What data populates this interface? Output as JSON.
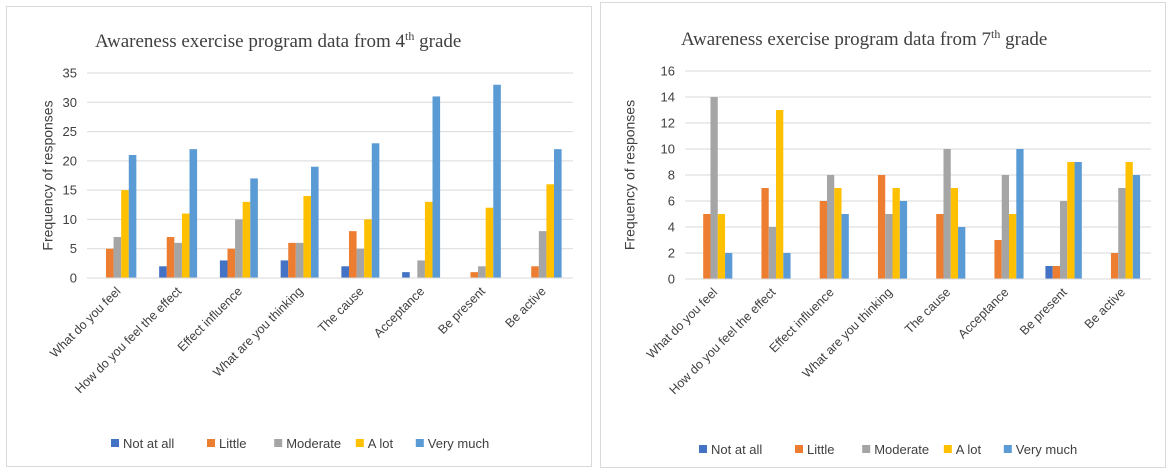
{
  "chart_data": [
    {
      "type": "bar",
      "title": "Awareness exercise program data from 4",
      "title_sup": "th",
      "title_end": " grade",
      "ylabel": "Frequency of responses",
      "xlabel": "",
      "ylim": [
        0,
        35
      ],
      "yticks": [
        0,
        5,
        10,
        15,
        20,
        25,
        30,
        35
      ],
      "grid": true,
      "legend_position": "bottom",
      "categories": [
        "What do you feel",
        "How do you feel the effect",
        "Effect influence",
        "What are you thinking",
        "The cause",
        "Acceptance",
        "Be present",
        "Be active"
      ],
      "series": [
        {
          "name": "Not at all",
          "color": "#4472C4",
          "values": [
            0,
            2,
            3,
            3,
            2,
            1,
            0,
            0
          ]
        },
        {
          "name": "Little",
          "color": "#ED7D31",
          "values": [
            5,
            7,
            5,
            6,
            8,
            0,
            1,
            2
          ]
        },
        {
          "name": "Moderate",
          "color": "#A5A5A5",
          "values": [
            7,
            6,
            10,
            6,
            5,
            3,
            2,
            8
          ]
        },
        {
          "name": "A lot",
          "color": "#FFC000",
          "values": [
            15,
            11,
            13,
            14,
            10,
            13,
            12,
            16
          ]
        },
        {
          "name": "Very much",
          "color": "#5B9BD5",
          "values": [
            21,
            22,
            17,
            19,
            23,
            31,
            33,
            22
          ]
        }
      ]
    },
    {
      "type": "bar",
      "title": "Awareness exercise program data from 7",
      "title_sup": "th",
      "title_end": " grade",
      "ylabel": "Frequency of responses",
      "xlabel": "",
      "ylim": [
        0,
        16
      ],
      "yticks": [
        0,
        2,
        4,
        6,
        8,
        10,
        12,
        14,
        16
      ],
      "grid": true,
      "legend_position": "bottom",
      "categories": [
        "What do you feel",
        "How do you feel the effect",
        "Effect influence",
        "What are you thinking",
        "The cause",
        "Acceptance",
        "Be present",
        "Be active"
      ],
      "series": [
        {
          "name": "Not at all",
          "color": "#4472C4",
          "values": [
            0,
            0,
            0,
            0,
            0,
            0,
            1,
            0
          ]
        },
        {
          "name": "Little",
          "color": "#ED7D31",
          "values": [
            5,
            7,
            6,
            8,
            5,
            3,
            1,
            2
          ]
        },
        {
          "name": "Moderate",
          "color": "#A5A5A5",
          "values": [
            14,
            4,
            8,
            5,
            10,
            8,
            6,
            7
          ]
        },
        {
          "name": "A lot",
          "color": "#FFC000",
          "values": [
            5,
            13,
            7,
            7,
            7,
            5,
            9,
            9
          ]
        },
        {
          "name": "Very much",
          "color": "#5B9BD5",
          "values": [
            2,
            2,
            5,
            6,
            4,
            10,
            9,
            8
          ]
        }
      ]
    }
  ]
}
